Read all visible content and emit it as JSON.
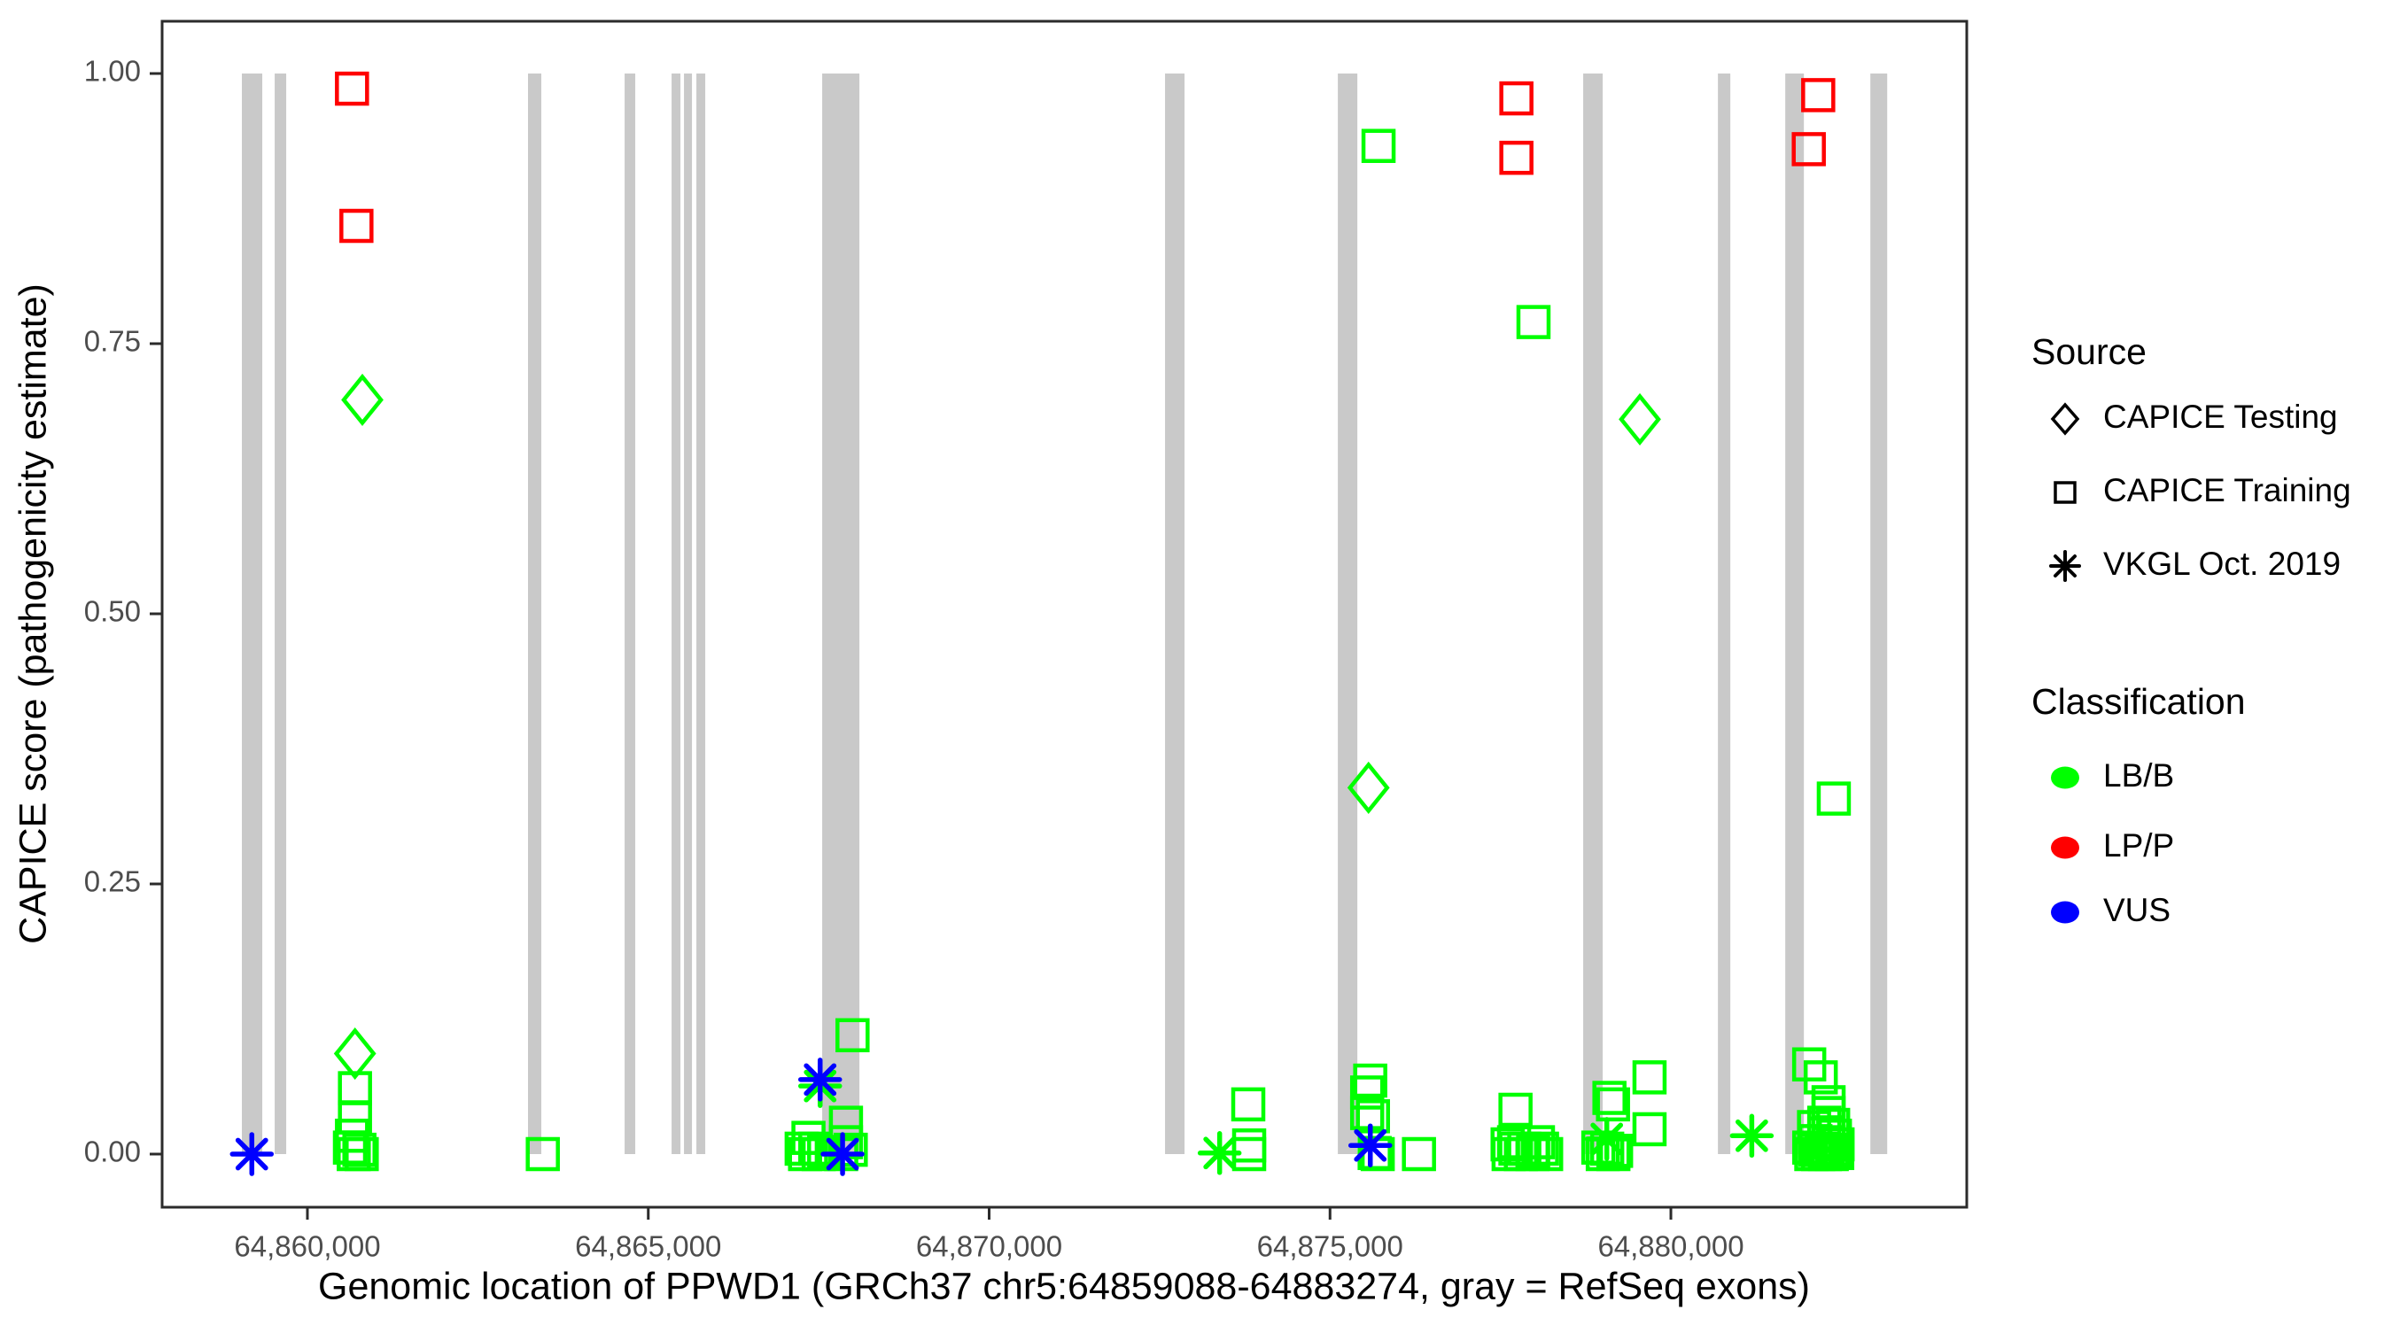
{
  "figure": {
    "x_axis": {
      "title": "Genomic location of PPWD1 (GRCh37 chr5:64859088-64883274, gray = RefSeq exons)",
      "ticks": [
        {
          "bp": 64860000,
          "label": "64,860,000"
        },
        {
          "bp": 64865000,
          "label": "64,865,000"
        },
        {
          "bp": 64870000,
          "label": "64,870,000"
        },
        {
          "bp": 64875000,
          "label": "64,875,000"
        },
        {
          "bp": 64880000,
          "label": "64,880,000"
        }
      ]
    },
    "y_axis": {
      "title": "CAPICE score (pathogenicity estimate)",
      "ticks": [
        {
          "value": 0.0,
          "label": "0.00"
        },
        {
          "value": 0.25,
          "label": "0.25"
        },
        {
          "value": 0.5,
          "label": "0.50"
        },
        {
          "value": 0.75,
          "label": "0.75"
        },
        {
          "value": 1.0,
          "label": "1.00"
        }
      ]
    },
    "legend": {
      "source": {
        "title": "Source",
        "items": [
          {
            "shape": "diamond",
            "label": "CAPICE Testing"
          },
          {
            "shape": "square",
            "label": "CAPICE Training"
          },
          {
            "shape": "asterisk",
            "label": "VKGL Oct. 2019"
          }
        ]
      },
      "classification": {
        "title": "Classification",
        "items": [
          {
            "color": "#00FF00",
            "label": "LB/B"
          },
          {
            "color": "#FF0000",
            "label": "LP/P"
          },
          {
            "color": "#0000FF",
            "label": "VUS"
          }
        ]
      }
    }
  },
  "chart_data": {
    "type": "scatter",
    "title": "",
    "xlabel": "Genomic location of PPWD1 (GRCh37 chr5:64859088-64883274, gray = RefSeq exons)",
    "ylabel": "CAPICE score (pathogenicity estimate)",
    "xlim": [
      64857869,
      64884340
    ],
    "ylim": [
      0,
      1
    ],
    "grid": false,
    "legend_position": "right",
    "class_colors": {
      "LB/B": "#00FF00",
      "LP/P": "#FF0000",
      "VUS": "#0000FF"
    },
    "exon_color": "#C9C9C9",
    "exon_note": "gray = RefSeq exons, bars span score 0 to 1",
    "exons_bp": [
      [
        64859039,
        64859338
      ],
      [
        64859520,
        64859689
      ],
      [
        64863236,
        64863431
      ],
      [
        64864653,
        64864809
      ],
      [
        64865342,
        64865472
      ],
      [
        64865524,
        64865641
      ],
      [
        64865706,
        64865836
      ],
      [
        64867551,
        64868097
      ],
      [
        64872580,
        64872866
      ],
      [
        64875115,
        64875401
      ],
      [
        64878714,
        64879000
      ],
      [
        64880690,
        64880872
      ],
      [
        64881678,
        64881951
      ],
      [
        64882926,
        64883173
      ]
    ],
    "series": [
      {
        "name": "CAPICE Training",
        "shape": "square",
        "points": [
          {
            "x": 64860654,
            "y": 0.986,
            "class": "LP/P"
          },
          {
            "x": 64860719,
            "y": 0.859,
            "class": "LP/P"
          },
          {
            "x": 64877734,
            "y": 0.977,
            "class": "LP/P"
          },
          {
            "x": 64877734,
            "y": 0.922,
            "class": "LP/P"
          },
          {
            "x": 64882161,
            "y": 0.98,
            "class": "LP/P"
          },
          {
            "x": 64882023,
            "y": 0.93,
            "class": "LP/P"
          },
          {
            "x": 64860698,
            "y": 0.061,
            "class": "LB/B"
          },
          {
            "x": 64860698,
            "y": 0.034,
            "class": "LB/B"
          },
          {
            "x": 64860654,
            "y": 0.017,
            "class": "LB/B"
          },
          {
            "x": 64860624,
            "y": 0.006,
            "class": "LB/B"
          },
          {
            "x": 64860763,
            "y": 0.004,
            "class": "LB/B"
          },
          {
            "x": 64860797,
            "y": 0.0,
            "class": "LB/B"
          },
          {
            "x": 64860680,
            "y": 0.0,
            "class": "LB/B"
          },
          {
            "x": 64863453,
            "y": 0.0,
            "class": "LB/B"
          },
          {
            "x": 64867996,
            "y": 0.11,
            "class": "LB/B"
          },
          {
            "x": 64867350,
            "y": 0.015,
            "class": "LB/B"
          },
          {
            "x": 64867250,
            "y": 0.005,
            "class": "LB/B"
          },
          {
            "x": 64867450,
            "y": 0.005,
            "class": "LB/B"
          },
          {
            "x": 64867580,
            "y": 0.002,
            "class": "LB/B"
          },
          {
            "x": 64867300,
            "y": 0.0,
            "class": "LB/B"
          },
          {
            "x": 64867500,
            "y": 0.0,
            "class": "LB/B"
          },
          {
            "x": 64867900,
            "y": 0.029,
            "class": "LB/B"
          },
          {
            "x": 64867900,
            "y": 0.011,
            "class": "LB/B"
          },
          {
            "x": 64867970,
            "y": 0.004,
            "class": "LB/B"
          },
          {
            "x": 64867830,
            "y": 0.0,
            "class": "LB/B"
          },
          {
            "x": 64873801,
            "y": 0.046,
            "class": "LB/B"
          },
          {
            "x": 64873814,
            "y": 0.008,
            "class": "LB/B"
          },
          {
            "x": 64873814,
            "y": 0.0,
            "class": "LB/B"
          },
          {
            "x": 64875712,
            "y": 0.933,
            "class": "LB/B"
          },
          {
            "x": 64875590,
            "y": 0.068,
            "class": "LB/B"
          },
          {
            "x": 64875545,
            "y": 0.057,
            "class": "LB/B"
          },
          {
            "x": 64875545,
            "y": 0.038,
            "class": "LB/B"
          },
          {
            "x": 64875630,
            "y": 0.035,
            "class": "LB/B"
          },
          {
            "x": 64875655,
            "y": 0.001,
            "class": "LB/B"
          },
          {
            "x": 64875700,
            "y": 0.0,
            "class": "LB/B"
          },
          {
            "x": 64876305,
            "y": 0.0,
            "class": "LB/B"
          },
          {
            "x": 64877985,
            "y": 0.77,
            "class": "LB/B"
          },
          {
            "x": 64877721,
            "y": 0.041,
            "class": "LB/B"
          },
          {
            "x": 64877700,
            "y": 0.011,
            "class": "LB/B"
          },
          {
            "x": 64878050,
            "y": 0.011,
            "class": "LB/B"
          },
          {
            "x": 64877605,
            "y": 0.009,
            "class": "LB/B"
          },
          {
            "x": 64877720,
            "y": 0.005,
            "class": "LB/B"
          },
          {
            "x": 64877850,
            "y": 0.005,
            "class": "LB/B"
          },
          {
            "x": 64877980,
            "y": 0.003,
            "class": "LB/B"
          },
          {
            "x": 64878110,
            "y": 0.005,
            "class": "LB/B"
          },
          {
            "x": 64877620,
            "y": 0.0,
            "class": "LB/B"
          },
          {
            "x": 64877800,
            "y": 0.0,
            "class": "LB/B"
          },
          {
            "x": 64877970,
            "y": 0.0,
            "class": "LB/B"
          },
          {
            "x": 64878170,
            "y": 0.0,
            "class": "LB/B"
          },
          {
            "x": 64879099,
            "y": 0.052,
            "class": "LB/B"
          },
          {
            "x": 64879151,
            "y": 0.046,
            "class": "LB/B"
          },
          {
            "x": 64879687,
            "y": 0.071,
            "class": "LB/B"
          },
          {
            "x": 64879687,
            "y": 0.023,
            "class": "LB/B"
          },
          {
            "x": 64878936,
            "y": 0.006,
            "class": "LB/B"
          },
          {
            "x": 64879066,
            "y": 0.005,
            "class": "LB/B"
          },
          {
            "x": 64879196,
            "y": 0.003,
            "class": "LB/B"
          },
          {
            "x": 64879001,
            "y": 0.0,
            "class": "LB/B"
          },
          {
            "x": 64879157,
            "y": 0.0,
            "class": "LB/B"
          },
          {
            "x": 64882029,
            "y": 0.083,
            "class": "LB/B"
          },
          {
            "x": 64882198,
            "y": 0.071,
            "class": "LB/B"
          },
          {
            "x": 64882390,
            "y": 0.329,
            "class": "LB/B"
          },
          {
            "x": 64882313,
            "y": 0.048,
            "class": "LB/B"
          },
          {
            "x": 64882313,
            "y": 0.038,
            "class": "LB/B"
          },
          {
            "x": 64882250,
            "y": 0.029,
            "class": "LB/B"
          },
          {
            "x": 64882380,
            "y": 0.027,
            "class": "LB/B"
          },
          {
            "x": 64882100,
            "y": 0.025,
            "class": "LB/B"
          },
          {
            "x": 64882250,
            "y": 0.019,
            "class": "LB/B"
          },
          {
            "x": 64882406,
            "y": 0.017,
            "class": "LB/B"
          },
          {
            "x": 64882120,
            "y": 0.012,
            "class": "LB/B"
          },
          {
            "x": 64882315,
            "y": 0.011,
            "class": "LB/B"
          },
          {
            "x": 64882445,
            "y": 0.009,
            "class": "LB/B"
          },
          {
            "x": 64882030,
            "y": 0.006,
            "class": "LB/B"
          },
          {
            "x": 64882120,
            "y": 0.004,
            "class": "LB/B"
          },
          {
            "x": 64882210,
            "y": 0.005,
            "class": "LB/B"
          },
          {
            "x": 64882300,
            "y": 0.002,
            "class": "LB/B"
          },
          {
            "x": 64882390,
            "y": 0.004,
            "class": "LB/B"
          },
          {
            "x": 64882060,
            "y": 0.0,
            "class": "LB/B"
          },
          {
            "x": 64882160,
            "y": 0.0,
            "class": "LB/B"
          },
          {
            "x": 64882260,
            "y": 0.0,
            "class": "LB/B"
          },
          {
            "x": 64882360,
            "y": 0.0,
            "class": "LB/B"
          },
          {
            "x": 64882440,
            "y": 0.001,
            "class": "LB/B"
          }
        ]
      },
      {
        "name": "CAPICE Testing",
        "shape": "diamond",
        "points": [
          {
            "x": 64860806,
            "y": 0.698,
            "class": "LB/B"
          },
          {
            "x": 64860698,
            "y": 0.093,
            "class": "LB/B"
          },
          {
            "x": 64875565,
            "y": 0.339,
            "class": "LB/B"
          },
          {
            "x": 64879545,
            "y": 0.68,
            "class": "LB/B"
          }
        ]
      },
      {
        "name": "VKGL Oct. 2019",
        "shape": "asterisk",
        "points": [
          {
            "x": 64867521,
            "y": 0.063,
            "class": "LB/B"
          },
          {
            "x": 64873381,
            "y": 0.001,
            "class": "LB/B"
          },
          {
            "x": 64879060,
            "y": 0.014,
            "class": "LB/B"
          },
          {
            "x": 64881187,
            "y": 0.017,
            "class": "LB/B"
          },
          {
            "x": 64859185,
            "y": 0.0,
            "class": "VUS"
          },
          {
            "x": 64867521,
            "y": 0.069,
            "class": "VUS"
          },
          {
            "x": 64867850,
            "y": 0.0,
            "class": "VUS"
          },
          {
            "x": 64875591,
            "y": 0.008,
            "class": "VUS"
          }
        ]
      }
    ]
  }
}
